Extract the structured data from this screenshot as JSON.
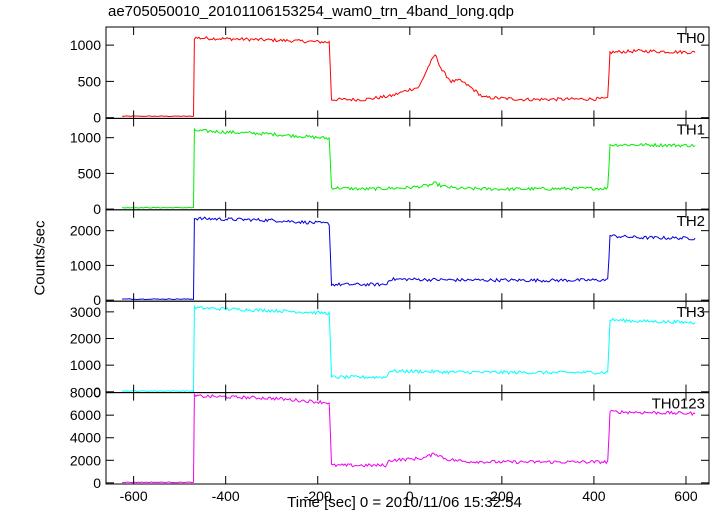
{
  "chart_data": {
    "type": "line",
    "title": "ae705050010_20101106153254_wam0_trn_4band_long.qdp",
    "xlabel": "Time [sec] 0 = 2010/11/06 15:32:54",
    "ylabel": "Counts/sec",
    "xlim": [
      -660,
      650
    ],
    "xticks": [
      -600,
      -400,
      -200,
      0,
      200,
      400,
      600
    ],
    "grid": false,
    "panels": [
      {
        "name": "TH0",
        "color": "#ff0000",
        "ylim": [
          -10,
          1250
        ],
        "yticks": [
          0,
          500,
          1000
        ],
        "x": [
          -625,
          -470,
          -468,
          -300,
          -175,
          -170,
          -100,
          -40,
          0,
          20,
          40,
          55,
          70,
          90,
          110,
          130,
          160,
          250,
          430,
          435,
          500,
          620
        ],
        "y": [
          20,
          20,
          1100,
          1070,
          1040,
          250,
          250,
          300,
          390,
          420,
          700,
          870,
          650,
          500,
          510,
          430,
          280,
          250,
          260,
          900,
          920,
          900
        ]
      },
      {
        "name": "TH1",
        "color": "#00ee00",
        "ylim": [
          -10,
          1270
        ],
        "yticks": [
          0,
          500,
          1000
        ],
        "x": [
          -625,
          -470,
          -468,
          -300,
          -175,
          -170,
          -100,
          0,
          40,
          55,
          70,
          100,
          200,
          430,
          435,
          500,
          620
        ],
        "y": [
          20,
          20,
          1100,
          1050,
          990,
          300,
          280,
          300,
          330,
          360,
          320,
          290,
          280,
          290,
          900,
          900,
          890
        ]
      },
      {
        "name": "TH2",
        "color": "#0000dd",
        "ylim": [
          -30,
          2600
        ],
        "yticks": [
          0,
          1000,
          2000
        ],
        "x": [
          -625,
          -470,
          -468,
          -300,
          -175,
          -170,
          -50,
          -45,
          0,
          100,
          300,
          430,
          435,
          500,
          620
        ],
        "y": [
          30,
          30,
          2350,
          2300,
          2200,
          450,
          450,
          600,
          600,
          580,
          570,
          580,
          1850,
          1800,
          1780
        ]
      },
      {
        "name": "TH3",
        "color": "#00ffff",
        "ylim": [
          -30,
          3400
        ],
        "yticks": [
          0,
          1000,
          2000,
          3000
        ],
        "x": [
          -625,
          -470,
          -468,
          -300,
          -175,
          -170,
          -50,
          -45,
          0,
          100,
          300,
          430,
          435,
          500,
          620
        ],
        "y": [
          30,
          30,
          3150,
          3050,
          2950,
          550,
          550,
          780,
          770,
          740,
          720,
          730,
          2700,
          2650,
          2600
        ]
      },
      {
        "name": "TH0123",
        "color": "#ee00ee",
        "ylim": [
          -100,
          8000
        ],
        "yticks": [
          0,
          2000,
          4000,
          6000,
          8000
        ],
        "x": [
          -625,
          -470,
          -468,
          -300,
          -175,
          -170,
          -50,
          -45,
          0,
          30,
          55,
          80,
          120,
          200,
          430,
          435,
          500,
          620
        ],
        "y": [
          50,
          50,
          7700,
          7500,
          7100,
          1550,
          1550,
          2000,
          2100,
          2200,
          2600,
          2100,
          1900,
          1850,
          1850,
          6300,
          6250,
          6150
        ]
      }
    ]
  }
}
